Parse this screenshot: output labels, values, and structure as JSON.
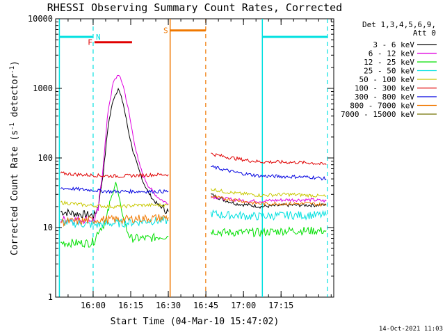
{
  "chart_data": {
    "type": "line",
    "title": "RHESSI Observing Summary Count Rates, Corrected",
    "xlabel": "Start Time (04-Mar-10 15:47:02)",
    "ylabel": "Corrected Count Rate (s",
    "ylabel_sup1": "-1",
    "ylabel_mid": " detector",
    "ylabel_sup2": "-1",
    "ylabel_end": ")",
    "yscale": "log",
    "ylim": [
      1,
      10000
    ],
    "xlim_min": [
      -2,
      109
    ],
    "x_unit": "minutes after 15:47:02",
    "x_tick_labels": [
      "16:00",
      "16:15",
      "16:30",
      "16:45",
      "17:00",
      "17:15"
    ],
    "x_tick_minutes": [
      12.97,
      27.97,
      42.97,
      57.97,
      72.97,
      87.97
    ],
    "y_tick_labels": [
      "1",
      "10",
      "100",
      "1000",
      "10000"
    ],
    "y_tick_values": [
      1,
      10,
      100,
      1000,
      10000
    ],
    "legend": {
      "header1": "Det 1,3,4,5,6,9,",
      "header2": "Att 0",
      "position": "top-right"
    },
    "series": [
      {
        "name": "3 - 6 keV",
        "color": "#000000",
        "segments": [
          [
            [
              0,
              17
            ],
            [
              5,
              16
            ],
            [
              12,
              15
            ],
            [
              13.5,
              15
            ],
            [
              15,
              20
            ],
            [
              17,
              60
            ],
            [
              19,
              300
            ],
            [
              21,
              700
            ],
            [
              23,
              1000
            ],
            [
              25,
              600
            ],
            [
              27,
              250
            ],
            [
              29,
              120
            ],
            [
              31,
              70
            ],
            [
              33,
              45
            ],
            [
              35,
              32
            ],
            [
              37,
              25
            ],
            [
              39,
              21
            ],
            [
              41,
              19
            ],
            [
              43,
              17
            ]
          ],
          [
            [
              60,
              30
            ],
            [
              65,
              25
            ],
            [
              70,
              22
            ],
            [
              75,
              21
            ],
            [
              80,
              20
            ],
            [
              90,
              21
            ],
            [
              100,
              21
            ],
            [
              106,
              21
            ]
          ]
        ]
      },
      {
        "name": "6 - 12 keV",
        "color": "#e000e0",
        "segments": [
          [
            [
              0,
              13
            ],
            [
              12,
              13
            ],
            [
              13.5,
              13
            ],
            [
              15,
              18
            ],
            [
              17,
              80
            ],
            [
              19,
              500
            ],
            [
              21,
              1200
            ],
            [
              23,
              1600
            ],
            [
              25,
              1100
            ],
            [
              27,
              500
            ],
            [
              29,
              200
            ],
            [
              31,
              90
            ],
            [
              33,
              55
            ],
            [
              35,
              40
            ],
            [
              37,
              32
            ],
            [
              39,
              27
            ],
            [
              41,
              24
            ],
            [
              43,
              22
            ]
          ],
          [
            [
              60,
              28
            ],
            [
              65,
              26
            ],
            [
              70,
              25
            ],
            [
              75,
              24
            ],
            [
              80,
              24
            ],
            [
              90,
              25
            ],
            [
              100,
              25
            ],
            [
              106,
              24
            ]
          ]
        ]
      },
      {
        "name": "12 - 25 keV",
        "color": "#00e000",
        "segments": [
          [
            [
              0,
              6
            ],
            [
              12,
              6
            ],
            [
              13.5,
              6.5
            ],
            [
              15,
              9
            ],
            [
              18,
              12
            ],
            [
              20,
              25
            ],
            [
              22,
              45
            ],
            [
              24,
              20
            ],
            [
              26,
              10
            ],
            [
              28,
              7
            ],
            [
              32,
              7
            ],
            [
              36,
              7
            ],
            [
              40,
              7.5
            ],
            [
              43,
              7.5
            ]
          ],
          [
            [
              60,
              9
            ],
            [
              65,
              8.5
            ],
            [
              70,
              8.5
            ],
            [
              75,
              8.5
            ],
            [
              80,
              8.5
            ],
            [
              90,
              9
            ],
            [
              100,
              9
            ],
            [
              106,
              9
            ]
          ]
        ]
      },
      {
        "name": "25 - 50 keV",
        "color": "#00e0e0",
        "segments": [
          [
            [
              0,
              12
            ],
            [
              12,
              11
            ],
            [
              15,
              11
            ],
            [
              20,
              11.5
            ],
            [
              25,
              11.5
            ],
            [
              30,
              12
            ],
            [
              35,
              12.5
            ],
            [
              43,
              12.5
            ]
          ],
          [
            [
              60,
              16
            ],
            [
              65,
              15
            ],
            [
              70,
              15
            ],
            [
              75,
              14.5
            ],
            [
              80,
              14.5
            ],
            [
              90,
              15
            ],
            [
              100,
              15
            ],
            [
              106,
              15
            ]
          ]
        ]
      },
      {
        "name": "50 - 100 keV",
        "color": "#c8c800",
        "segments": [
          [
            [
              0,
              23
            ],
            [
              10,
              21
            ],
            [
              20,
              20
            ],
            [
              25,
              20
            ],
            [
              30,
              21
            ],
            [
              35,
              21
            ],
            [
              43,
              21
            ]
          ],
          [
            [
              60,
              36
            ],
            [
              65,
              33
            ],
            [
              70,
              31
            ],
            [
              75,
              30
            ],
            [
              80,
              29
            ],
            [
              90,
              30
            ],
            [
              100,
              29
            ],
            [
              106,
              28
            ]
          ]
        ]
      },
      {
        "name": "100 - 300 keV",
        "color": "#e00000",
        "segments": [
          [
            [
              0,
              60
            ],
            [
              10,
              57
            ],
            [
              20,
              55
            ],
            [
              25,
              55
            ],
            [
              30,
              56
            ],
            [
              35,
              57
            ],
            [
              43,
              58
            ]
          ],
          [
            [
              60,
              115
            ],
            [
              65,
              105
            ],
            [
              70,
              98
            ],
            [
              75,
              92
            ],
            [
              80,
              88
            ],
            [
              90,
              87
            ],
            [
              100,
              85
            ],
            [
              106,
              80
            ]
          ]
        ]
      },
      {
        "name": "300 - 800 keV",
        "color": "#0000e0",
        "segments": [
          [
            [
              0,
              37
            ],
            [
              10,
              35
            ],
            [
              20,
              33
            ],
            [
              25,
              33
            ],
            [
              30,
              33
            ],
            [
              35,
              33
            ],
            [
              43,
              33
            ]
          ],
          [
            [
              60,
              75
            ],
            [
              65,
              68
            ],
            [
              70,
              62
            ],
            [
              75,
              58
            ],
            [
              80,
              55
            ],
            [
              90,
              54
            ],
            [
              100,
              53
            ],
            [
              106,
              50
            ]
          ]
        ]
      },
      {
        "name": "800 - 7000 keV",
        "color": "#f07800",
        "segments": [
          [
            [
              0,
              12
            ],
            [
              10,
              12.5
            ],
            [
              15,
              13
            ],
            [
              20,
              13
            ],
            [
              25,
              13
            ],
            [
              30,
              13.5
            ],
            [
              35,
              13.5
            ],
            [
              43,
              14
            ]
          ],
          [
            [
              60,
              28
            ],
            [
              65,
              26
            ],
            [
              70,
              25
            ],
            [
              75,
              23
            ],
            [
              80,
              22
            ],
            [
              90,
              22
            ],
            [
              100,
              22
            ],
            [
              106,
              21
            ]
          ]
        ]
      },
      {
        "name": "7000 - 15000 keV",
        "color": "#707000",
        "segments": []
      }
    ],
    "intervals": [
      {
        "label": "N",
        "color": "#00e0e0",
        "y": 5500,
        "x_start": 12.97,
        "x_end": 20.5,
        "solid_x": -0.5,
        "dash_x": 12.97,
        "bar_x_start": -0.5,
        "bar_x_end": 12.8
      },
      {
        "label": "F",
        "color": "#e00000",
        "y": 4600,
        "x_start": 13.5,
        "x_end": 28.5
      },
      {
        "label": "S",
        "color": "#f07800",
        "y": 6800,
        "x_start": 43.7,
        "x_end": 57.9,
        "solid_x": 43.7,
        "dash_x": 57.9
      },
      {
        "label": "",
        "color": "#00e0e0",
        "y": 5500,
        "x_start": 80.5,
        "x_end": 106.5,
        "solid_x": 80.5,
        "dash_x": 106.5
      }
    ],
    "footer_date": "14-Oct-2021 11:03"
  }
}
